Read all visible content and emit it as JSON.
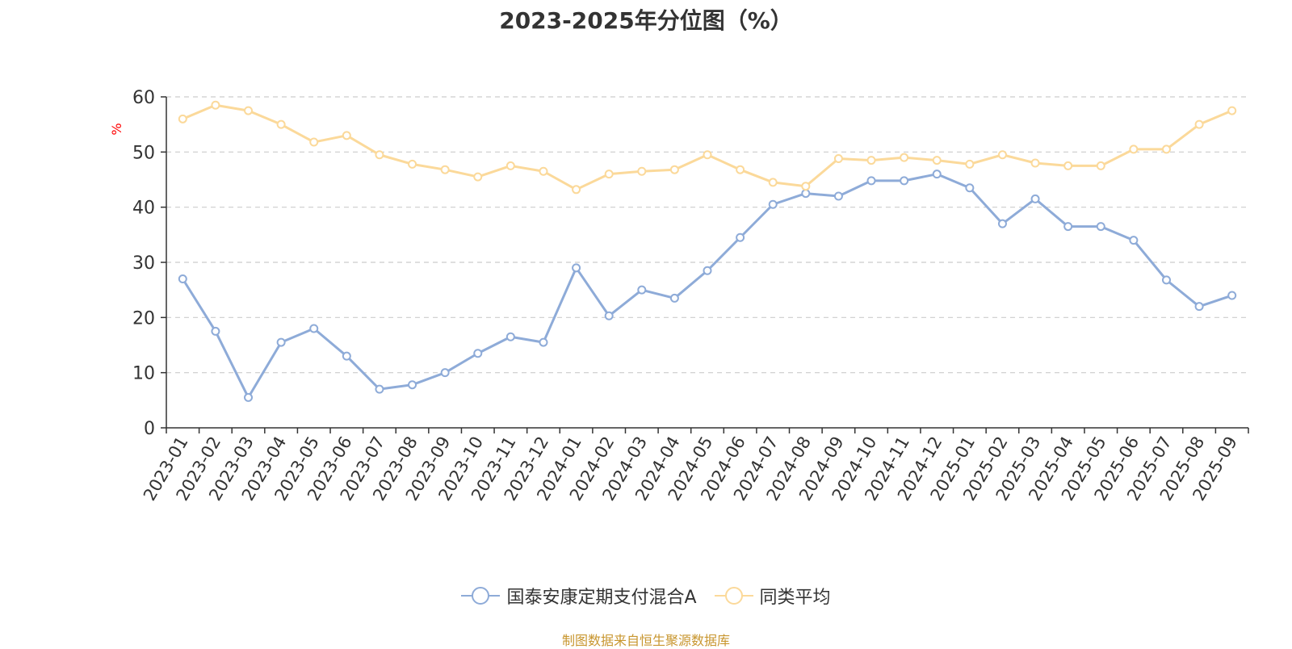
{
  "title": "2023-2025年分位图（%）",
  "source_note": "制图数据来自恒生聚源数据库",
  "colors": {
    "series_a": "#8eabd8",
    "series_b": "#fbd99a",
    "axis": "#333333",
    "grid": "#cccccc",
    "ylabel": "#ff0000",
    "source": "#c8962f"
  },
  "chart_data": {
    "type": "line",
    "title": "2023-2025年分位图（%）",
    "ylabel": "%",
    "xlabel": "",
    "ylim": [
      0,
      60
    ],
    "yticks": [
      0,
      10,
      20,
      30,
      40,
      50,
      60
    ],
    "grid": true,
    "legend_position": "bottom-center",
    "categories": [
      "2023-01",
      "2023-02",
      "2023-03",
      "2023-04",
      "2023-05",
      "2023-06",
      "2023-07",
      "2023-08",
      "2023-09",
      "2023-10",
      "2023-11",
      "2023-12",
      "2024-01",
      "2024-02",
      "2024-03",
      "2024-04",
      "2024-05",
      "2024-06",
      "2024-07",
      "2024-08",
      "2024-09",
      "2024-10",
      "2024-11",
      "2024-12",
      "2025-01",
      "2025-02",
      "2025-03",
      "2025-04",
      "2025-05",
      "2025-06",
      "2025-07",
      "2025-08",
      "2025-09"
    ],
    "series": [
      {
        "name": "国泰安康定期支付混合A",
        "values": [
          27.0,
          17.5,
          5.5,
          15.5,
          18.0,
          13.0,
          7.0,
          7.8,
          10.0,
          13.5,
          16.5,
          15.5,
          29.0,
          20.3,
          25.0,
          23.5,
          28.5,
          34.5,
          40.5,
          42.5,
          42.0,
          44.8,
          44.8,
          46.0,
          43.5,
          37.0,
          41.5,
          36.5,
          36.5,
          34.0,
          26.8,
          22.0,
          24.0
        ]
      },
      {
        "name": "同类平均",
        "values": [
          56.0,
          58.5,
          57.5,
          55.0,
          51.8,
          53.0,
          49.5,
          47.8,
          46.8,
          45.5,
          47.5,
          46.5,
          43.2,
          46.0,
          46.5,
          46.8,
          49.5,
          46.8,
          44.5,
          43.8,
          48.8,
          48.5,
          49.0,
          48.5,
          47.8,
          49.5,
          48.0,
          47.5,
          47.5,
          50.5,
          50.5,
          55.0,
          57.5
        ]
      }
    ]
  }
}
